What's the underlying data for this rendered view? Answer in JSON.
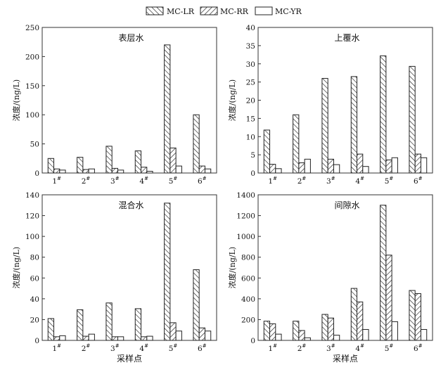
{
  "legend": [
    "MC-LR",
    "MC-RR",
    "MC-YR"
  ],
  "xlabel": "采样点",
  "ylabel": "浓度/(ng/L)",
  "chart_data": [
    {
      "type": "bar",
      "title": "表层水",
      "categories": [
        "1#",
        "2#",
        "3#",
        "4#",
        "5#",
        "6#"
      ],
      "series": [
        {
          "name": "MC-LR",
          "values": [
            25,
            27,
            46,
            38,
            220,
            100
          ]
        },
        {
          "name": "MC-RR",
          "values": [
            7,
            6,
            8,
            10,
            43,
            12
          ]
        },
        {
          "name": "MC-YR",
          "values": [
            5,
            7,
            5,
            3,
            12,
            7
          ]
        }
      ],
      "ylim": [
        0,
        250
      ],
      "yticks": [
        0,
        50,
        100,
        150,
        200,
        250
      ],
      "xlabel": "",
      "ylabel": "浓度/(ng/L)"
    },
    {
      "type": "bar",
      "title": "上覆水",
      "categories": [
        "1#",
        "2#",
        "3#",
        "4#",
        "5#",
        "6#"
      ],
      "series": [
        {
          "name": "MC-LR",
          "values": [
            11.8,
            16,
            26,
            26.5,
            32.2,
            29.3
          ]
        },
        {
          "name": "MC-RR",
          "values": [
            2.4,
            2.8,
            3.8,
            5.2,
            3.6,
            5.2
          ]
        },
        {
          "name": "MC-YR",
          "values": [
            1.2,
            3.8,
            2.3,
            1.8,
            4.2,
            4.2
          ]
        }
      ],
      "ylim": [
        0,
        40
      ],
      "yticks": [
        0,
        5,
        10,
        15,
        20,
        25,
        30,
        35,
        40
      ],
      "xlabel": "",
      "ylabel": "浓度/(ng/L)"
    },
    {
      "type": "bar",
      "title": "混合水",
      "categories": [
        "1#",
        "2#",
        "3#",
        "4#",
        "5#",
        "6#"
      ],
      "series": [
        {
          "name": "MC-LR",
          "values": [
            21,
            29.5,
            36,
            30.5,
            132,
            68
          ]
        },
        {
          "name": "MC-RR",
          "values": [
            3.5,
            4,
            3.5,
            3.5,
            17,
            12
          ]
        },
        {
          "name": "MC-YR",
          "values": [
            4.5,
            6,
            3.5,
            4,
            9,
            9
          ]
        }
      ],
      "ylim": [
        0,
        140
      ],
      "yticks": [
        0,
        20,
        40,
        60,
        80,
        100,
        120,
        140
      ],
      "xlabel": "采样点",
      "ylabel": "浓度/(ng/L)"
    },
    {
      "type": "bar",
      "title": "间隙水",
      "categories": [
        "1#",
        "2#",
        "3#",
        "4#",
        "5#",
        "6#"
      ],
      "series": [
        {
          "name": "MC-LR",
          "values": [
            185,
            185,
            250,
            500,
            1300,
            480
          ]
        },
        {
          "name": "MC-RR",
          "values": [
            160,
            95,
            215,
            370,
            820,
            450
          ]
        },
        {
          "name": "MC-YR",
          "values": [
            60,
            25,
            50,
            105,
            180,
            105
          ]
        }
      ],
      "ylim": [
        0,
        1400
      ],
      "yticks": [
        0,
        200,
        400,
        600,
        800,
        1000,
        1200,
        1400
      ],
      "xlabel": "采样点",
      "ylabel": "浓度/(ng/L)"
    }
  ]
}
